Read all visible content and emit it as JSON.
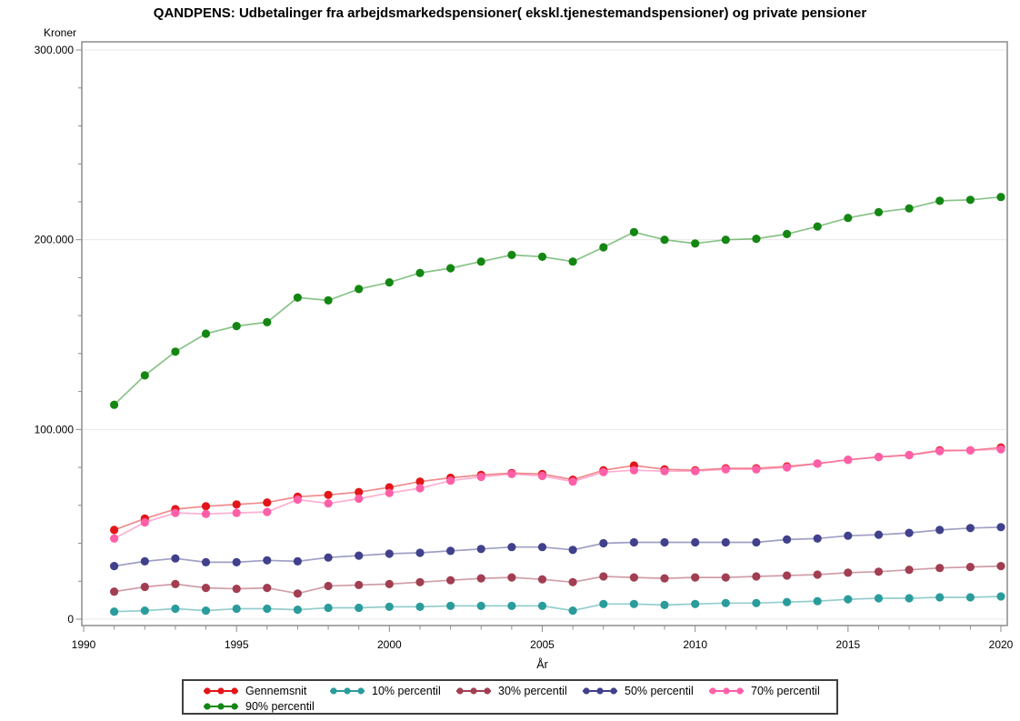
{
  "title": "QANDPENS: Udbetalinger fra arbejdsmarkedspensioner( ekskl.tjenestemandspensioner) og private pensioner",
  "colors": {
    "frame": "#8c8c8c",
    "grid": "#e8e8e8",
    "tick": "#8c8c8c",
    "text": "#000000",
    "legend_border": "#3f3f3f"
  },
  "chart_data": {
    "type": "line",
    "title": "QANDPENS: Udbetalinger fra arbejdsmarkedspensioner( ekskl.tjenestemandspensioner) og private pensioner",
    "ylabel": "Kroner",
    "xlabel": "År",
    "xlim": [
      1990,
      2020
    ],
    "ylim": [
      0,
      300000
    ],
    "grid": "horizontal-major",
    "legend_position": "bottom",
    "yticks": [
      0,
      100000,
      200000,
      300000
    ],
    "ytick_labels": [
      "0",
      "100.000",
      "200.000",
      "300.000"
    ],
    "y_minor_step": 20000,
    "xticks": [
      1990,
      1995,
      2000,
      2005,
      2010,
      2015,
      2020
    ],
    "x_minor_step": 1,
    "x": [
      1991,
      1992,
      1993,
      1994,
      1995,
      1996,
      1997,
      1998,
      1999,
      2000,
      2001,
      2002,
      2003,
      2004,
      2005,
      2006,
      2007,
      2008,
      2009,
      2010,
      2011,
      2012,
      2013,
      2014,
      2015,
      2016,
      2017,
      2018,
      2019,
      2020
    ],
    "draw_order": [
      5,
      1,
      2,
      3,
      0,
      4
    ],
    "series": [
      {
        "name": "Gennemsnit",
        "color": "#e21619",
        "values": [
          47000,
          53000,
          58000,
          59500,
          60500,
          61500,
          64500,
          65500,
          67000,
          69500,
          72500,
          74500,
          76000,
          77000,
          76500,
          73500,
          78500,
          81000,
          79000,
          78500,
          79500,
          79500,
          80500,
          82000,
          84000,
          85500,
          86500,
          89000,
          89000,
          90500
        ]
      },
      {
        "name": "10% percentil",
        "color": "#2b9c9c",
        "values": [
          4000,
          4500,
          5500,
          4500,
          5500,
          5500,
          5000,
          6000,
          6000,
          6500,
          6500,
          7000,
          7000,
          7000,
          7000,
          4500,
          8000,
          8000,
          7500,
          8000,
          8500,
          8500,
          9000,
          9500,
          10500,
          11000,
          11000,
          11500,
          11500,
          12000
        ]
      },
      {
        "name": "30% percentil",
        "color": "#a23e52",
        "values": [
          14500,
          17000,
          18500,
          16500,
          16000,
          16500,
          13500,
          17500,
          18000,
          18500,
          19500,
          20500,
          21500,
          22000,
          21000,
          19500,
          22500,
          22000,
          21500,
          22000,
          22000,
          22500,
          23000,
          23500,
          24500,
          25000,
          26000,
          27000,
          27500,
          28000
        ]
      },
      {
        "name": "50% percentil",
        "color": "#40408c",
        "values": [
          28000,
          30500,
          32000,
          30000,
          30000,
          31000,
          30500,
          32500,
          33500,
          34500,
          35000,
          36000,
          37000,
          38000,
          38000,
          36500,
          40000,
          40500,
          40500,
          40500,
          40500,
          40500,
          42000,
          42500,
          44000,
          44500,
          45500,
          47000,
          48000,
          48500
        ]
      },
      {
        "name": "70% percentil",
        "color": "#ff5fa8",
        "values": [
          42500,
          51000,
          56000,
          55500,
          56000,
          56500,
          63000,
          61000,
          63500,
          66500,
          69000,
          73000,
          75000,
          76500,
          75500,
          72500,
          77500,
          78500,
          78000,
          78000,
          79000,
          79000,
          80000,
          82000,
          84000,
          85500,
          86500,
          88500,
          89000,
          89500
        ]
      },
      {
        "name": "90% percentil",
        "color": "#148712",
        "values": [
          113000,
          128500,
          141000,
          150500,
          154500,
          156500,
          169500,
          168000,
          174000,
          177500,
          182500,
          185000,
          188500,
          192000,
          191000,
          188500,
          196000,
          204000,
          200000,
          198000,
          200000,
          200500,
          203000,
          207000,
          211500,
          214500,
          216500,
          220500,
          221000,
          222500
        ]
      }
    ]
  },
  "legend": {
    "rows": [
      [
        0,
        1,
        2,
        3,
        4
      ],
      [
        5
      ]
    ]
  }
}
